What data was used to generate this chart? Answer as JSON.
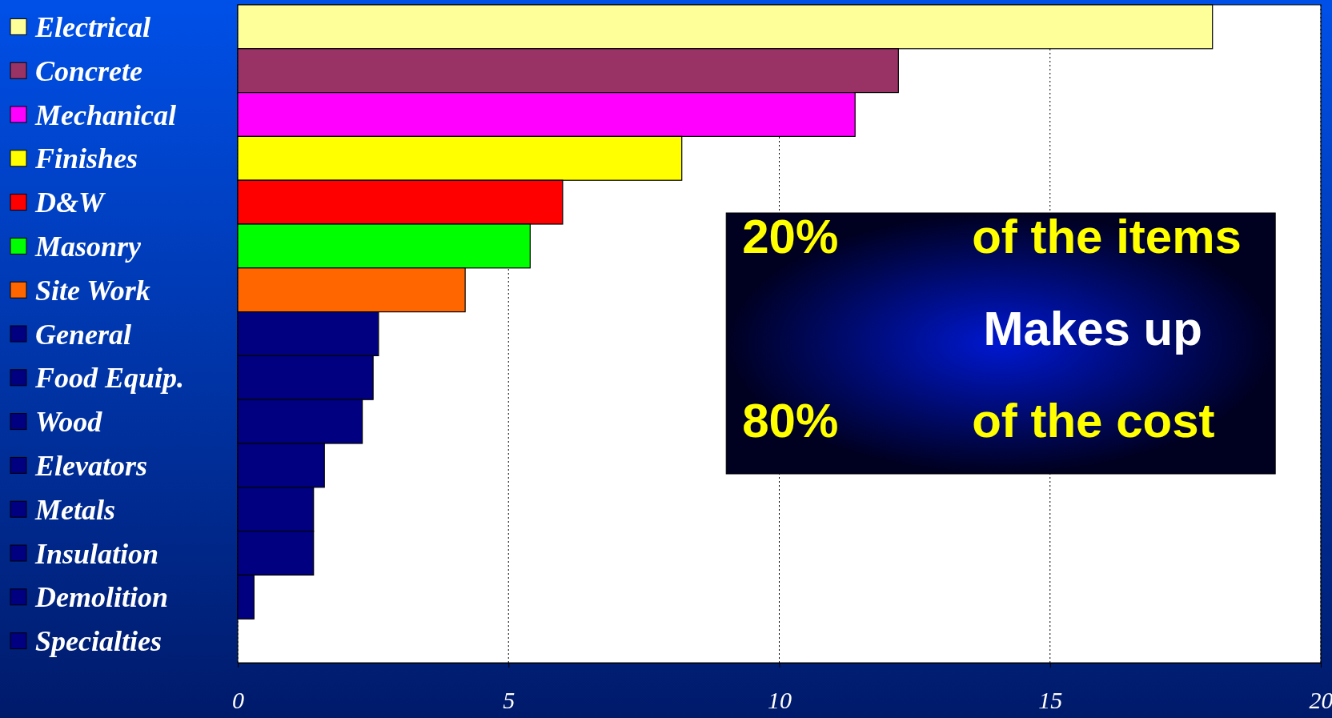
{
  "chart_data": {
    "type": "bar",
    "orientation": "horizontal",
    "categories": [
      "Electrical",
      "Concrete",
      "Mechanical",
      "Finishes",
      "D&W",
      "Masonry",
      "Site Work",
      "General",
      "Food Equip.",
      "Wood",
      "Elevators",
      "Metals",
      "Insulation",
      "Demolition",
      "Specialties"
    ],
    "values": [
      18,
      12.2,
      11.4,
      8.2,
      6,
      5.4,
      4.2,
      2.6,
      2.5,
      2.3,
      1.6,
      1.4,
      1.4,
      0.3,
      0
    ],
    "colors": [
      "#ffff99",
      "#993366",
      "#ff00ff",
      "#ffff00",
      "#ff0000",
      "#00ff00",
      "#ff6600",
      "#000080",
      "#000080",
      "#000080",
      "#000080",
      "#000080",
      "#000080",
      "#000080",
      "#000080"
    ],
    "xlim": [
      0,
      20
    ],
    "xticks": [
      0,
      5,
      10,
      15,
      20
    ],
    "grid": "x",
    "annotations": [
      "20%",
      "of the items",
      "Makes up",
      "80%",
      "of the cost"
    ]
  }
}
